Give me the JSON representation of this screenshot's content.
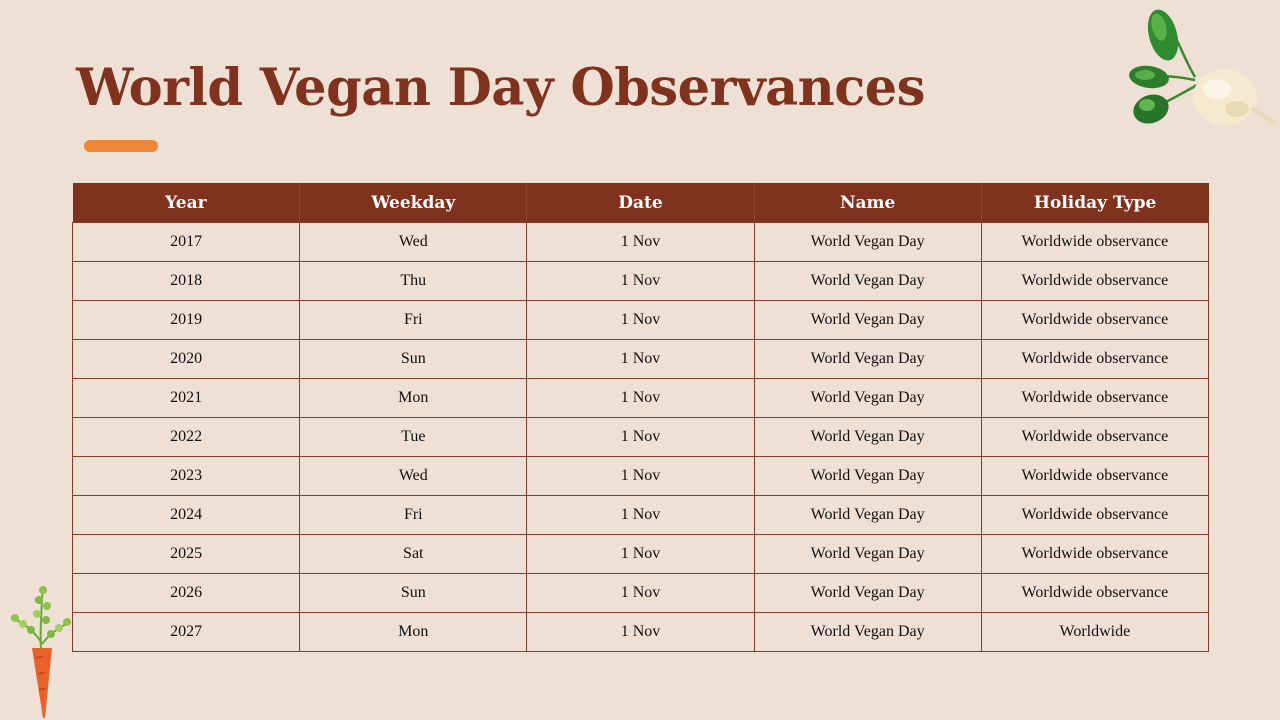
{
  "title": "World Vegan Day Observances",
  "colors": {
    "accent": "#f0863a",
    "header": "#7f321d",
    "background": "#eee0d5"
  },
  "decorations": [
    "radish-icon",
    "carrot-icon"
  ],
  "table": {
    "headers": [
      "Year",
      "Weekday",
      "Date",
      "Name",
      "Holiday Type"
    ],
    "rows": [
      [
        "2017",
        "Wed",
        "1 Nov",
        "World Vegan Day",
        "Worldwide observance"
      ],
      [
        "2018",
        "Thu",
        "1 Nov",
        "World Vegan Day",
        "Worldwide observance"
      ],
      [
        "2019",
        "Fri",
        "1 Nov",
        "World Vegan Day",
        "Worldwide observance"
      ],
      [
        "2020",
        "Sun",
        "1 Nov",
        "World Vegan Day",
        "Worldwide observance"
      ],
      [
        "2021",
        "Mon",
        "1 Nov",
        "World Vegan Day",
        "Worldwide observance"
      ],
      [
        "2022",
        "Tue",
        "1 Nov",
        "World Vegan Day",
        "Worldwide observance"
      ],
      [
        "2023",
        "Wed",
        "1 Nov",
        "World Vegan Day",
        "Worldwide observance"
      ],
      [
        "2024",
        "Fri",
        "1 Nov",
        "World Vegan Day",
        "Worldwide observance"
      ],
      [
        "2025",
        "Sat",
        "1 Nov",
        "World Vegan Day",
        "Worldwide observance"
      ],
      [
        "2026",
        "Sun",
        "1 Nov",
        "World Vegan Day",
        "Worldwide observance"
      ],
      [
        "2027",
        "Mon",
        "1 Nov",
        "World Vegan Day",
        "Worldwide"
      ]
    ]
  }
}
